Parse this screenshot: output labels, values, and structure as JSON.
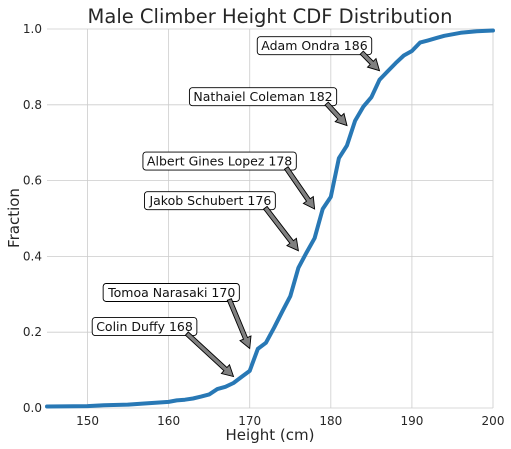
{
  "chart_data": {
    "type": "line",
    "title": "Male Climber Height CDF Distribution",
    "xlabel": "Height (cm)",
    "ylabel": "Fraction",
    "xlim": [
      145,
      200
    ],
    "ylim": [
      0,
      1.0
    ],
    "xticks": [
      150,
      160,
      170,
      180,
      190,
      200
    ],
    "xtick_labels": [
      "150",
      "160",
      "170",
      "180",
      "190",
      "200"
    ],
    "yticks": [
      0,
      0.2,
      0.4,
      0.6,
      0.8,
      1.0
    ],
    "ytick_labels": [
      "0.0",
      "0.2",
      "0.4",
      "0.6",
      "0.8",
      "1.0"
    ],
    "grid": true,
    "line_color": "#2878b5",
    "series": [
      {
        "x": [
          145,
          150,
          152,
          155,
          157,
          160,
          161,
          162,
          163,
          164,
          165,
          166,
          167,
          168,
          169,
          170,
          171,
          172,
          173,
          174,
          175,
          176,
          177,
          178,
          179,
          180,
          181,
          182,
          183,
          184,
          185,
          186,
          187,
          188,
          189,
          190,
          191,
          192,
          193,
          194,
          195,
          196,
          197,
          198,
          199,
          200
        ],
        "y": [
          0.004,
          0.005,
          0.007,
          0.009,
          0.012,
          0.016,
          0.02,
          0.022,
          0.025,
          0.03,
          0.036,
          0.05,
          0.056,
          0.066,
          0.082,
          0.098,
          0.156,
          0.172,
          0.212,
          0.254,
          0.295,
          0.37,
          0.41,
          0.448,
          0.525,
          0.557,
          0.659,
          0.693,
          0.758,
          0.795,
          0.82,
          0.866,
          0.888,
          0.91,
          0.93,
          0.942,
          0.964,
          0.97,
          0.976,
          0.982,
          0.986,
          0.99,
          0.992,
          0.994,
          0.995,
          0.996
        ]
      }
    ],
    "annotations": [
      {
        "text": "Adam Ondra 186",
        "x": 186,
        "y": 0.89
      },
      {
        "text": "Nathaiel Coleman 182",
        "x": 182,
        "y": 0.745
      },
      {
        "text": "Albert Gines Lopez 178",
        "x": 178,
        "y": 0.525
      },
      {
        "text": "Jakob Schubert 176",
        "x": 176,
        "y": 0.415
      },
      {
        "text": "Tomoa Narasaki 170",
        "x": 170,
        "y": 0.157
      },
      {
        "text": "Colin Duffy 168",
        "x": 168,
        "y": 0.083
      }
    ]
  }
}
